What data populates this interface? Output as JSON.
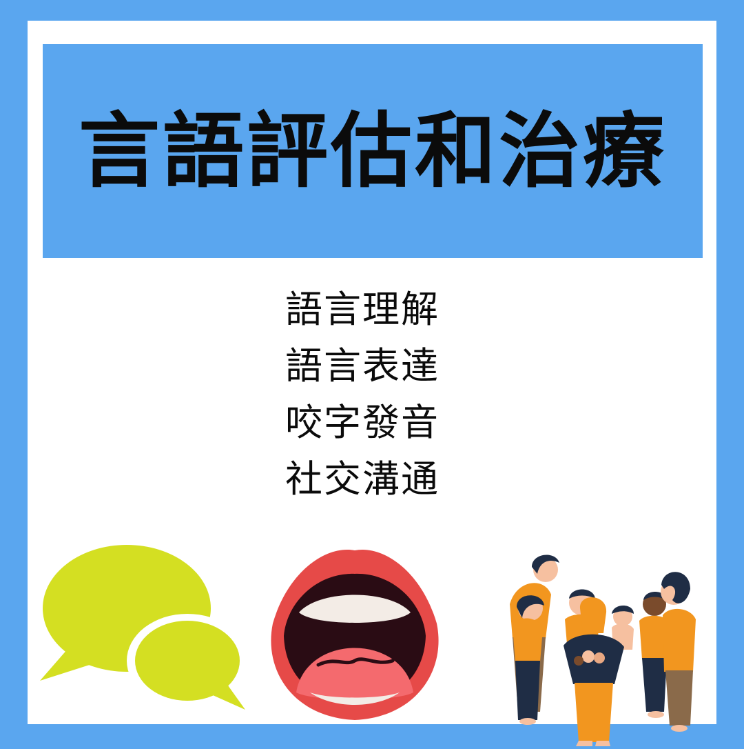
{
  "title": "言語評估和治療",
  "services": [
    "語言理解",
    "語言表達",
    "咬字發音",
    "社交溝通"
  ],
  "illustrations": [
    "speech-bubbles",
    "open-mouth",
    "group-of-people"
  ],
  "colors": {
    "background": "#5aa6ef",
    "card": "#ffffff",
    "banner": "#5aa6ef",
    "text": "#0b0b0b",
    "bubble": "#d4df22",
    "lips": "#e64a48",
    "tongue": "#f46a6e",
    "shirt": "#f2961f",
    "hair": "#1f2d45"
  }
}
